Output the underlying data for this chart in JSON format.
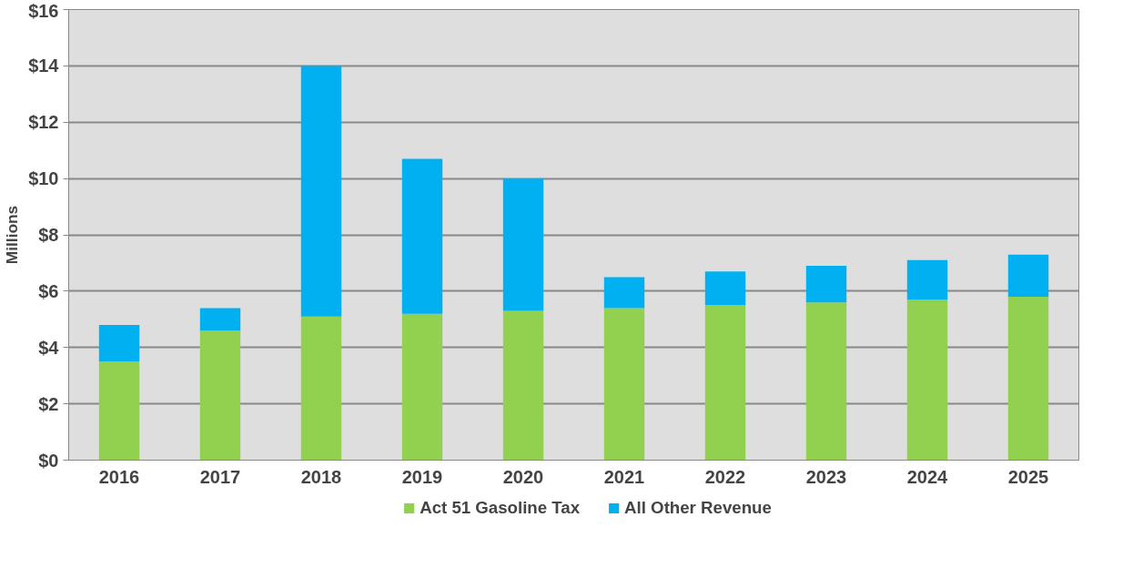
{
  "chart_data": {
    "type": "bar",
    "stacked": true,
    "ylabel": "Millions",
    "categories": [
      "2016",
      "2017",
      "2018",
      "2019",
      "2020",
      "2021",
      "2022",
      "2023",
      "2024",
      "2025"
    ],
    "series": [
      {
        "name": "Act 51 Gasoline Tax",
        "color": "#92d050",
        "values": [
          3.5,
          4.6,
          5.1,
          5.2,
          5.3,
          5.4,
          5.5,
          5.6,
          5.7,
          5.8
        ]
      },
      {
        "name": "All Other Revenue",
        "color": "#00b0f0",
        "values": [
          1.3,
          0.8,
          8.9,
          5.5,
          4.7,
          1.1,
          1.2,
          1.3,
          1.4,
          1.5
        ]
      }
    ],
    "ylim": [
      0,
      16
    ],
    "yticks": [
      {
        "value": 0,
        "label": "$0"
      },
      {
        "value": 2,
        "label": "$2"
      },
      {
        "value": 4,
        "label": "$4"
      },
      {
        "value": 6,
        "label": "$6"
      },
      {
        "value": 8,
        "label": "$8"
      },
      {
        "value": 10,
        "label": "$10"
      },
      {
        "value": 12,
        "label": "$12"
      },
      {
        "value": 14,
        "label": "$14"
      },
      {
        "value": 16,
        "label": "$16"
      }
    ],
    "grid": "y",
    "legend": "bottom"
  }
}
